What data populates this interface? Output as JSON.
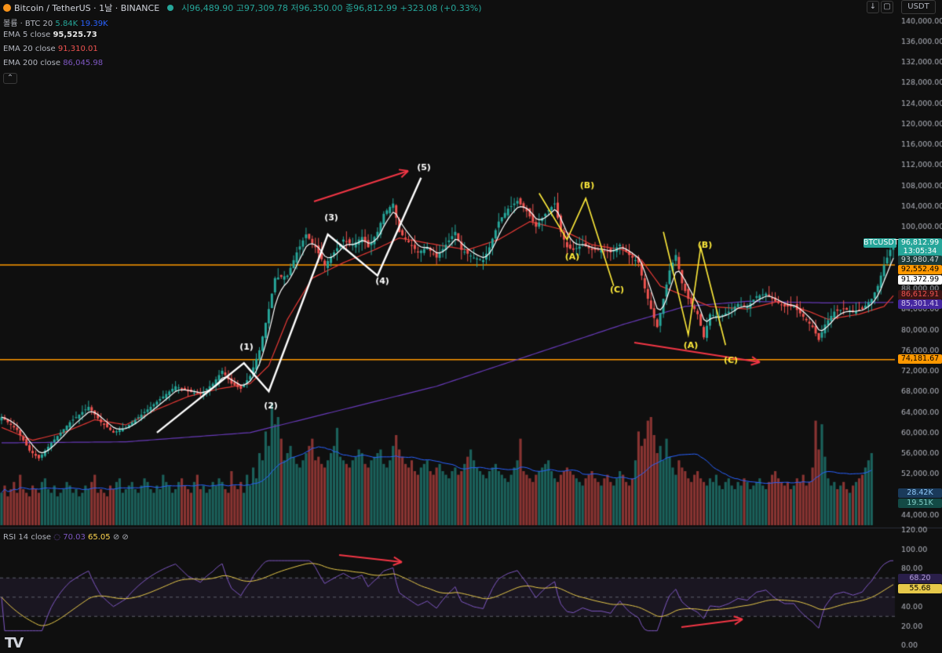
{
  "header": {
    "symbol": "Bitcoin / TetherUS · 1날 · BINANCE",
    "ohlc": "시96,489.90 고97,309.78 저96,350.00 종96,812.99 +323.08 (+0.33%)",
    "currency_selector": "USDT"
  },
  "legend": {
    "volume_label": "볼륨 · BTC 20",
    "volume_v1": "5.84K",
    "volume_v2": "19.39K",
    "ema5_label": "EMA 5 close",
    "ema5_value": "95,525.73",
    "ema20_label": "EMA 20 close",
    "ema20_value": "91,310.01",
    "ema200_label": "EMA 200 close",
    "ema200_value": "86,045.98"
  },
  "rsi_header": {
    "label": "RSI 14 close",
    "v1": "70.03",
    "v2": "65.05"
  },
  "price_tags": {
    "symbol_tag": "BTCUSDT",
    "last": "96,812.99",
    "countdown": "13:05:34",
    "t1": "93,980.47",
    "t2": "92,552.49",
    "t3": "91,372.99",
    "t4": "86,612.91",
    "t5": "85,301.41",
    "t6": "74,181.67",
    "vol1": "28.42K",
    "vol2": "19.51K",
    "rsi1": "68.20",
    "rsi2": "55.68"
  },
  "colors": {
    "up": "#26a69a",
    "down": "#ef5350",
    "ema5": "#ffffff",
    "ema20": "#e53935",
    "ema200": "#673ab7",
    "support": "#ff9800",
    "wave_white": "#ffffff",
    "wave_yellow": "#ffeb3b",
    "arrow": "#f23645",
    "rsi": "#7e57c2",
    "rsi_ma": "#e6c84a"
  },
  "chart_data": {
    "type": "candlestick",
    "y_axis_ticks": [
      "140,000.00",
      "136,000.00",
      "132,000.00",
      "128,000.00",
      "124,000.00",
      "120,000.00",
      "116,000.00",
      "112,000.00",
      "108,000.00",
      "104,000.00",
      "100,000.00",
      "96,000.00",
      "92,000.00",
      "88,000.00",
      "84,000.00",
      "80,000.00",
      "76,000.00",
      "72,000.00",
      "68,000.00",
      "64,000.00",
      "60,000.00",
      "56,000.00",
      "52,000.00",
      "48,000.00",
      "44,000.00"
    ],
    "rsi_ticks": [
      "120.00",
      "100.00",
      "80.00",
      "60.00",
      "40.00",
      "20.00",
      "0.00"
    ],
    "ylim": [
      42000,
      141000
    ],
    "rsi_ylim": [
      0,
      120
    ],
    "horizontal_levels": [
      92552.49,
      74181.67
    ],
    "price_path": [
      [
        0,
        63000
      ],
      [
        5,
        60500
      ],
      [
        9,
        56500
      ],
      [
        12,
        55000
      ],
      [
        16,
        58000
      ],
      [
        22,
        62000
      ],
      [
        28,
        65000
      ],
      [
        32,
        62000
      ],
      [
        36,
        60000
      ],
      [
        40,
        61000
      ],
      [
        46,
        64000
      ],
      [
        52,
        67000
      ],
      [
        56,
        69000
      ],
      [
        60,
        68000
      ],
      [
        64,
        67500
      ],
      [
        68,
        69500
      ],
      [
        71,
        72000
      ],
      [
        74,
        69500
      ],
      [
        77,
        68500
      ],
      [
        80,
        71000
      ],
      [
        83,
        76000
      ],
      [
        86,
        84000
      ],
      [
        88,
        90000
      ],
      [
        92,
        90500
      ],
      [
        95,
        95000
      ],
      [
        98,
        98500
      ],
      [
        101,
        96000
      ],
      [
        104,
        92500
      ],
      [
        107,
        95000
      ],
      [
        110,
        97500
      ],
      [
        113,
        96500
      ],
      [
        116,
        98000
      ],
      [
        118,
        96000
      ],
      [
        121,
        99000
      ],
      [
        123,
        102500
      ],
      [
        126,
        104500
      ],
      [
        128,
        99000
      ],
      [
        131,
        97000
      ],
      [
        134,
        95000
      ],
      [
        137,
        96000
      ],
      [
        140,
        94000
      ],
      [
        143,
        96500
      ],
      [
        146,
        99000
      ],
      [
        148,
        95500
      ],
      [
        152,
        94000
      ],
      [
        155,
        93500
      ],
      [
        157,
        96000
      ],
      [
        160,
        101000
      ],
      [
        163,
        103500
      ],
      [
        166,
        105000
      ],
      [
        169,
        103000
      ],
      [
        172,
        100000
      ],
      [
        175,
        102500
      ],
      [
        178,
        104500
      ],
      [
        180,
        99000
      ],
      [
        182,
        96000
      ],
      [
        184,
        95500
      ],
      [
        187,
        96500
      ],
      [
        190,
        95500
      ],
      [
        193,
        95500
      ],
      [
        196,
        95000
      ],
      [
        199,
        96500
      ],
      [
        202,
        94500
      ],
      [
        205,
        93000
      ],
      [
        207,
        88000
      ],
      [
        209,
        84000
      ],
      [
        211,
        80500
      ],
      [
        213,
        86000
      ],
      [
        215,
        91500
      ],
      [
        217,
        94500
      ],
      [
        219,
        89000
      ],
      [
        221,
        86000
      ],
      [
        224,
        83000
      ],
      [
        226,
        78500
      ],
      [
        228,
        83000
      ],
      [
        231,
        82500
      ],
      [
        234,
        83500
      ],
      [
        237,
        85000
      ],
      [
        240,
        84500
      ],
      [
        243,
        86500
      ],
      [
        246,
        87000
      ],
      [
        249,
        85500
      ],
      [
        252,
        84500
      ],
      [
        255,
        84500
      ],
      [
        258,
        82500
      ],
      [
        261,
        80500
      ],
      [
        263,
        78000
      ],
      [
        265,
        81000
      ],
      [
        268,
        83500
      ],
      [
        271,
        84000
      ],
      [
        274,
        83500
      ],
      [
        277,
        84000
      ],
      [
        280,
        86000
      ],
      [
        282,
        88500
      ],
      [
        284,
        92500
      ],
      [
        286,
        95500
      ],
      [
        287,
        96800
      ]
    ],
    "ema20_path": [
      [
        0,
        61000
      ],
      [
        10,
        58500
      ],
      [
        20,
        60000
      ],
      [
        30,
        62500
      ],
      [
        40,
        61500
      ],
      [
        50,
        64500
      ],
      [
        60,
        67000
      ],
      [
        70,
        68500
      ],
      [
        80,
        69500
      ],
      [
        86,
        73000
      ],
      [
        92,
        82000
      ],
      [
        100,
        90000
      ],
      [
        110,
        93000
      ],
      [
        120,
        95500
      ],
      [
        128,
        97800
      ],
      [
        140,
        96500
      ],
      [
        150,
        95500
      ],
      [
        160,
        97500
      ],
      [
        170,
        101000
      ],
      [
        180,
        99500
      ],
      [
        190,
        96500
      ],
      [
        200,
        95500
      ],
      [
        206,
        93500
      ],
      [
        212,
        88500
      ],
      [
        220,
        86500
      ],
      [
        228,
        84500
      ],
      [
        240,
        84000
      ],
      [
        250,
        85500
      ],
      [
        260,
        83500
      ],
      [
        266,
        82000
      ],
      [
        276,
        83000
      ],
      [
        284,
        84500
      ],
      [
        287,
        86600
      ]
    ],
    "ema200_path": [
      [
        0,
        58000
      ],
      [
        40,
        58200
      ],
      [
        80,
        60000
      ],
      [
        110,
        64500
      ],
      [
        140,
        69000
      ],
      [
        170,
        75000
      ],
      [
        200,
        81000
      ],
      [
        220,
        84500
      ],
      [
        240,
        85500
      ],
      [
        265,
        85200
      ],
      [
        287,
        85300
      ]
    ],
    "volume_bars_k": [
      9,
      11,
      8,
      10,
      12,
      9,
      14,
      10,
      9,
      8,
      11,
      10,
      9,
      12,
      13,
      10,
      9,
      11,
      8,
      9,
      10,
      12,
      11,
      9,
      10,
      8,
      9,
      11,
      10,
      12,
      14,
      9,
      10,
      9,
      8,
      11,
      10,
      12,
      13,
      9,
      10,
      11,
      12,
      10,
      9,
      11,
      13,
      12,
      10,
      9,
      11,
      10,
      14,
      12,
      11,
      9,
      10,
      12,
      13,
      11,
      10,
      9,
      12,
      14,
      10,
      11,
      9,
      10,
      12,
      11,
      13,
      12,
      10,
      9,
      15,
      11,
      10,
      12,
      9,
      14,
      11,
      16,
      13,
      20,
      18,
      26,
      22,
      34,
      28,
      30,
      24,
      18,
      20,
      22,
      19,
      17,
      16,
      18,
      20,
      22,
      24,
      18,
      19,
      17,
      16,
      18,
      20,
      22,
      27,
      19,
      18,
      17,
      16,
      18,
      19,
      21,
      20,
      17,
      16,
      18,
      19,
      20,
      21,
      17,
      16,
      18,
      22,
      25,
      21,
      19,
      17,
      16,
      18,
      15,
      14,
      16,
      17,
      18,
      15,
      14,
      16,
      17,
      15,
      14,
      13,
      15,
      16,
      14,
      15,
      17,
      19,
      21,
      18,
      16,
      15,
      14,
      13,
      15,
      16,
      17,
      15,
      14,
      13,
      12,
      14,
      16,
      18,
      24,
      15,
      14,
      13,
      12,
      14,
      15,
      16,
      17,
      18,
      15,
      13,
      12,
      14,
      15,
      16,
      15,
      14,
      13,
      12,
      11,
      13,
      14,
      15,
      13,
      12,
      11,
      13,
      14,
      12,
      11,
      13,
      15,
      14,
      12,
      11,
      13,
      18,
      26,
      22,
      24,
      29,
      30,
      25,
      20,
      22,
      18,
      24,
      19,
      16,
      14,
      18,
      16,
      15,
      13,
      12,
      14,
      15,
      13,
      12,
      11,
      13,
      12,
      14,
      11,
      10,
      12,
      13,
      11,
      10,
      12,
      11,
      13,
      12,
      10,
      11,
      12,
      13,
      11,
      10,
      12,
      14,
      15,
      13,
      12,
      11,
      12,
      10,
      11,
      13,
      12,
      14,
      11,
      12,
      16,
      29,
      21,
      28,
      19,
      13,
      11,
      12,
      10,
      11,
      12,
      10,
      9,
      11,
      12,
      13,
      14,
      16,
      18,
      20
    ]
  },
  "annotations": {
    "w1": "(1)",
    "w2": "(2)",
    "w3": "(3)",
    "w4": "(4)",
    "w5": "(5)",
    "a1": "(A)",
    "b1": "(B)",
    "c1": "(C)",
    "a2": "(A)",
    "b2": "(B)",
    "c2": "(C)"
  }
}
